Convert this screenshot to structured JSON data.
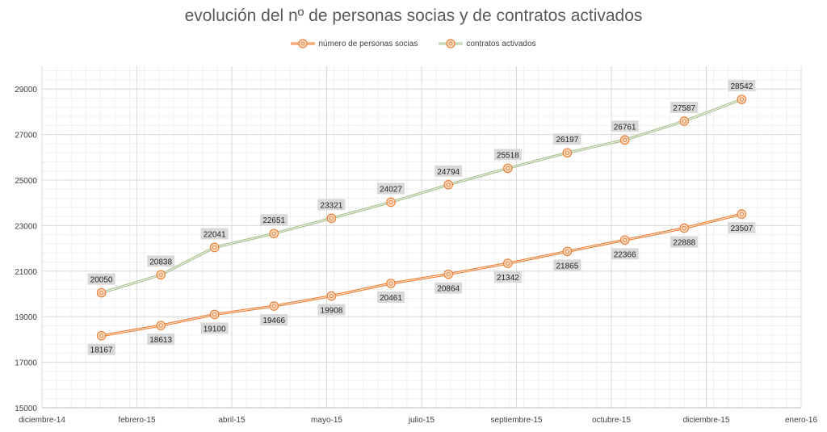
{
  "chart_data": {
    "type": "line",
    "title": "evolución del nº de personas socias y de contratos activados",
    "xlabel": "",
    "ylabel": "",
    "ylim": [
      15000,
      30000
    ],
    "yticks": [
      15000,
      17000,
      19000,
      21000,
      23000,
      25000,
      27000,
      29000
    ],
    "xlim": [
      "2014-12-01",
      "2016-01-01"
    ],
    "xticks": [
      "diciembre-14",
      "febrero-15",
      "abril-15",
      "mayo-15",
      "julio-15",
      "septiembre-15",
      "octubre-15",
      "diciembre-15",
      "enero-16"
    ],
    "x": [
      "2015-01-01",
      "2015-02-01",
      "2015-03-01",
      "2015-04-01",
      "2015-05-01",
      "2015-06-01",
      "2015-07-01",
      "2015-08-01",
      "2015-09-01",
      "2015-10-01",
      "2015-11-01",
      "2015-12-01"
    ],
    "legend_position": "top",
    "grid": true,
    "series": [
      {
        "name": "número de personas socias",
        "color": "#ED7D31",
        "values": [
          18167,
          18613,
          19100,
          19466,
          19908,
          20461,
          20864,
          21342,
          21865,
          22366,
          22888,
          23507
        ],
        "label_position": "below"
      },
      {
        "name": "contratos activados",
        "color": "#ED7D31",
        "line_color": "#A9C08F",
        "values": [
          20050,
          20838,
          22041,
          22651,
          23321,
          24027,
          24794,
          25518,
          26197,
          26761,
          27587,
          28542
        ],
        "label_position": "above"
      }
    ]
  }
}
